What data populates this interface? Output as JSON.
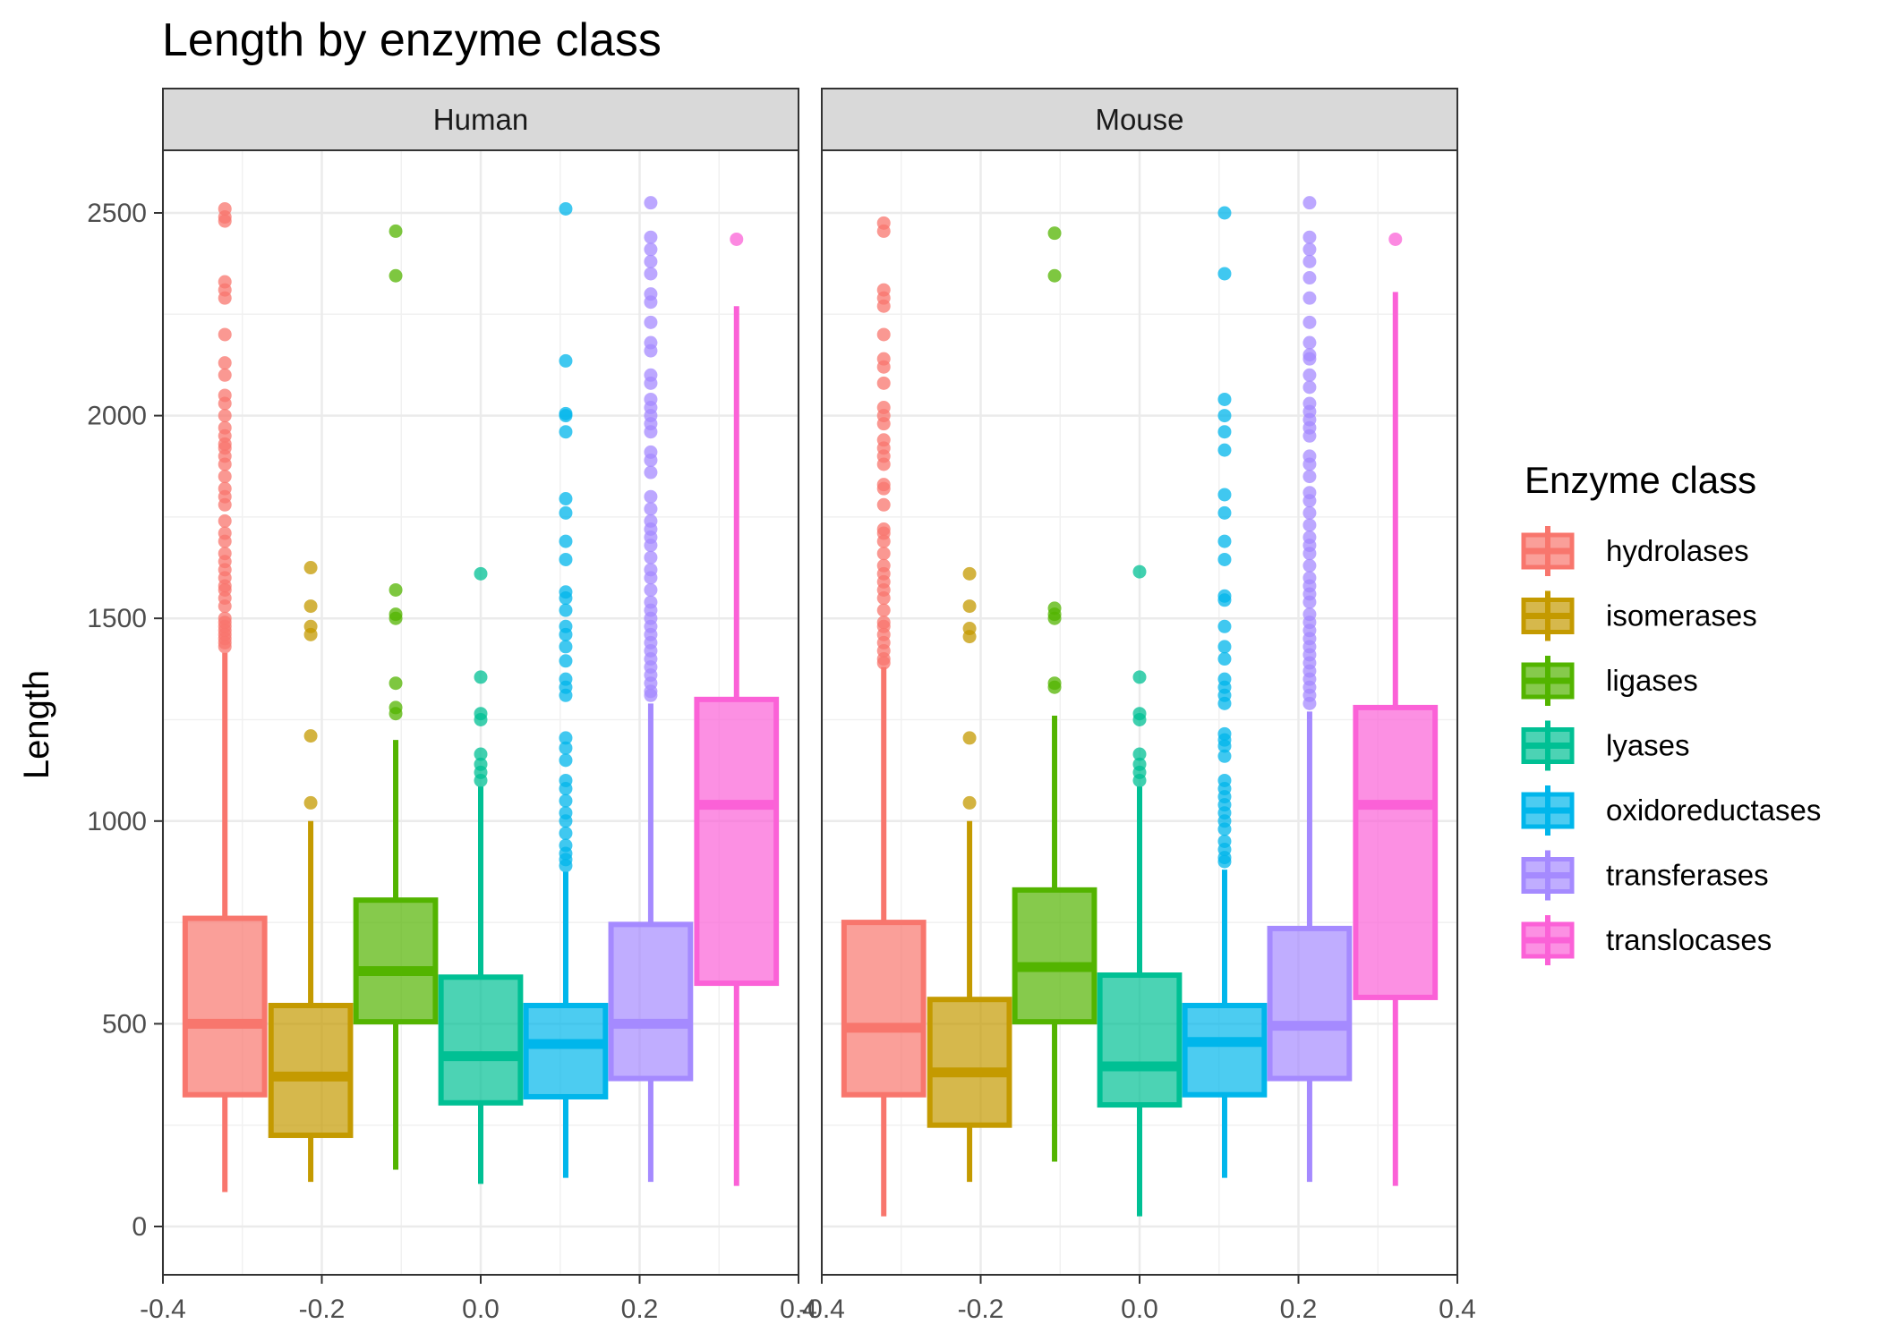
{
  "chart_data": {
    "type": "boxplot",
    "title": "Length by enzyme class",
    "ylabel": "Length",
    "xlabel": "",
    "ylim": [
      -75,
      2650
    ],
    "xlim": [
      -0.4,
      0.4
    ],
    "y_ticks": [
      0,
      500,
      1000,
      1500,
      2000,
      2500
    ],
    "x_ticks": [
      -0.4,
      -0.2,
      0.0,
      0.2,
      0.4
    ],
    "x_tick_labels": [
      "-0.4",
      "-0.2",
      "0.0",
      "0.2",
      "0.4"
    ],
    "grid": true,
    "legend": {
      "title": "Enzyme class",
      "placement": "right",
      "entries": [
        "hydrolases",
        "isomerases",
        "ligases",
        "lyases",
        "oxidoreductases",
        "transferases",
        "translocases"
      ]
    },
    "colors": {
      "hydrolases": "#F8766D",
      "isomerases": "#C49A00",
      "ligases": "#53B400",
      "lyases": "#00C094",
      "oxidoreductases": "#00B6EB",
      "transferases": "#A58AFF",
      "translocases": "#FB61D7"
    },
    "box_centers": [
      -0.322,
      -0.214,
      -0.107,
      0.0,
      0.107,
      0.214,
      0.322
    ],
    "box_width": 0.1,
    "panels": [
      {
        "name": "Human",
        "boxes": [
          {
            "class": "hydrolases",
            "min": 85,
            "q1": 325,
            "median": 500,
            "q3": 760,
            "max": 1415,
            "outliers": [
              2510,
              2490,
              2480,
              2330,
              2310,
              2290,
              2200,
              2130,
              2100,
              2050,
              2030,
              2000,
              1970,
              1950,
              1930,
              1920,
              1900,
              1880,
              1850,
              1820,
              1800,
              1780,
              1740,
              1710,
              1690,
              1660,
              1640,
              1620,
              1600,
              1580,
              1570,
              1550,
              1530,
              1500,
              1490,
              1480,
              1470,
              1460,
              1450,
              1440,
              1430
            ]
          },
          {
            "class": "isomerases",
            "min": 110,
            "q1": 225,
            "median": 370,
            "q3": 545,
            "max": 1000,
            "outliers": [
              1625,
              1530,
              1480,
              1460,
              1210,
              1045
            ]
          },
          {
            "class": "ligases",
            "min": 140,
            "q1": 505,
            "median": 630,
            "q3": 805,
            "max": 1200,
            "outliers": [
              2455,
              2345,
              1570,
              1510,
              1500,
              1340,
              1280,
              1265
            ]
          },
          {
            "class": "lyases",
            "min": 105,
            "q1": 305,
            "median": 420,
            "q3": 615,
            "max": 1085,
            "outliers": [
              1610,
              1355,
              1265,
              1250,
              1165,
              1140,
              1120,
              1100
            ]
          },
          {
            "class": "oxidoreductases",
            "min": 120,
            "q1": 320,
            "median": 450,
            "q3": 545,
            "max": 875,
            "outliers": [
              2510,
              2135,
              2005,
              2000,
              1960,
              1795,
              1760,
              1690,
              1645,
              1565,
              1550,
              1520,
              1480,
              1460,
              1430,
              1395,
              1350,
              1330,
              1310,
              1205,
              1180,
              1150,
              1100,
              1080,
              1050,
              1020,
              1000,
              970,
              940,
              920,
              905,
              890
            ]
          },
          {
            "class": "transferases",
            "min": 110,
            "q1": 365,
            "median": 500,
            "q3": 745,
            "max": 1290,
            "outliers": [
              2525,
              2440,
              2410,
              2380,
              2350,
              2300,
              2280,
              2230,
              2180,
              2160,
              2100,
              2080,
              2040,
              2020,
              2000,
              1980,
              1960,
              1910,
              1890,
              1860,
              1800,
              1770,
              1740,
              1720,
              1700,
              1680,
              1650,
              1620,
              1600,
              1570,
              1540,
              1520,
              1500,
              1480,
              1460,
              1440,
              1420,
              1400,
              1380,
              1360,
              1340,
              1320,
              1310
            ]
          },
          {
            "class": "translocases",
            "min": 100,
            "q1": 600,
            "median": 1040,
            "q3": 1300,
            "max": 2270,
            "outliers": [
              2435
            ]
          }
        ]
      },
      {
        "name": "Mouse",
        "boxes": [
          {
            "class": "hydrolases",
            "min": 25,
            "q1": 325,
            "median": 490,
            "q3": 750,
            "max": 1380,
            "outliers": [
              2475,
              2455,
              2310,
              2290,
              2270,
              2200,
              2140,
              2120,
              2080,
              2020,
              2000,
              1980,
              1940,
              1920,
              1900,
              1880,
              1830,
              1820,
              1780,
              1720,
              1710,
              1690,
              1660,
              1630,
              1610,
              1590,
              1570,
              1550,
              1520,
              1490,
              1480,
              1460,
              1440,
              1420,
              1400,
              1390
            ]
          },
          {
            "class": "isomerases",
            "min": 110,
            "q1": 250,
            "median": 380,
            "q3": 560,
            "max": 1000,
            "outliers": [
              1610,
              1530,
              1475,
              1455,
              1205,
              1045
            ]
          },
          {
            "class": "ligases",
            "min": 160,
            "q1": 505,
            "median": 640,
            "q3": 830,
            "max": 1260,
            "outliers": [
              2450,
              2345,
              1525,
              1510,
              1500,
              1340,
              1330
            ]
          },
          {
            "class": "lyases",
            "min": 25,
            "q1": 300,
            "median": 395,
            "q3": 620,
            "max": 1085,
            "outliers": [
              1615,
              1355,
              1265,
              1250,
              1165,
              1140,
              1120,
              1100
            ]
          },
          {
            "class": "oxidoreductases",
            "min": 120,
            "q1": 325,
            "median": 455,
            "q3": 545,
            "max": 880,
            "outliers": [
              2500,
              2350,
              2040,
              2000,
              1960,
              1915,
              1805,
              1760,
              1690,
              1645,
              1555,
              1545,
              1480,
              1430,
              1400,
              1350,
              1330,
              1310,
              1290,
              1215,
              1200,
              1185,
              1160,
              1100,
              1080,
              1060,
              1040,
              1020,
              1000,
              980,
              950,
              930,
              910,
              900
            ]
          },
          {
            "class": "transferases",
            "min": 110,
            "q1": 365,
            "median": 495,
            "q3": 735,
            "max": 1270,
            "outliers": [
              2525,
              2440,
              2410,
              2380,
              2340,
              2290,
              2230,
              2180,
              2150,
              2140,
              2100,
              2070,
              2030,
              2010,
              1990,
              1970,
              1950,
              1900,
              1880,
              1850,
              1810,
              1790,
              1760,
              1730,
              1700,
              1680,
              1660,
              1630,
              1600,
              1580,
              1560,
              1540,
              1510,
              1490,
              1470,
              1450,
              1430,
              1410,
              1390,
              1370,
              1350,
              1330,
              1310,
              1290
            ]
          },
          {
            "class": "translocases",
            "min": 100,
            "q1": 565,
            "median": 1040,
            "q3": 1280,
            "max": 2305,
            "outliers": [
              2435
            ]
          }
        ]
      }
    ]
  }
}
